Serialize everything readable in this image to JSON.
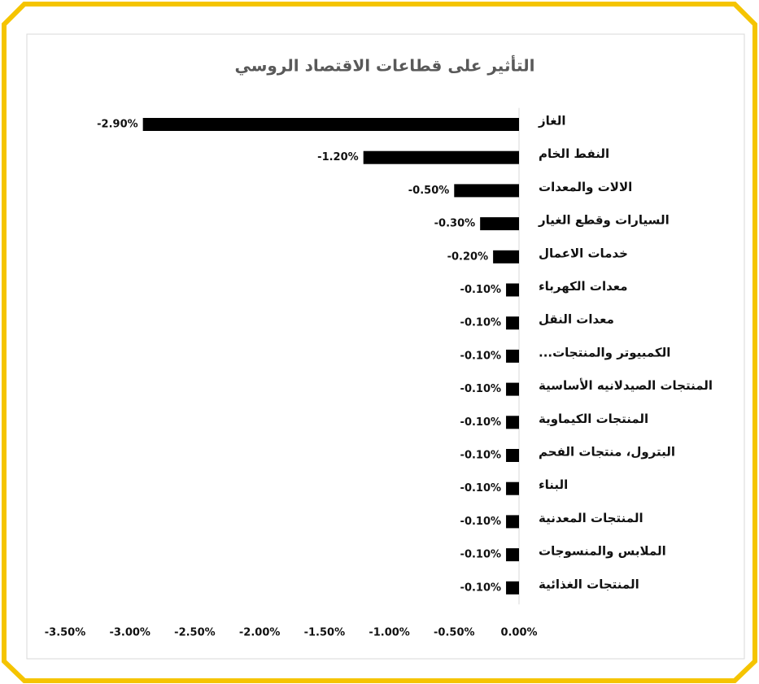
{
  "chart_data": {
    "type": "barh",
    "title": "التأثير على قطاعات الاقتصاد الروسي",
    "categories": [
      "الغاز",
      "النفط الخام",
      "الالات والمعدات",
      "السيارات وقطع الغيار",
      "خدمات الاعمال",
      "معدات الكهرباء",
      "معدات النقل",
      "الكمبيوتر والمنتجات...",
      "المنتجات الصيدلانيه الأساسية",
      "المنتجات الكيماوية",
      "البترول، منتجات الفحم",
      "البناء",
      "المنتجات المعدنية",
      "الملابس والمنسوجات",
      "المنتجات الغذائية"
    ],
    "values": [
      -2.9,
      -1.2,
      -0.5,
      -0.3,
      -0.2,
      -0.1,
      -0.1,
      -0.1,
      -0.1,
      -0.1,
      -0.1,
      -0.1,
      -0.1,
      -0.1,
      -0.1
    ],
    "value_labels": [
      "-2.90%",
      "-1.20%",
      "-0.50%",
      "-0.30%",
      "-0.20%",
      "-0.10%",
      "-0.10%",
      "-0.10%",
      "-0.10%",
      "-0.10%",
      "-0.10%",
      "-0.10%",
      "-0.10%",
      "-0.10%",
      "-0.10%"
    ],
    "color": "#000000",
    "xlim": [
      -3.5,
      0
    ],
    "xticks": [
      {
        "value": -3.5,
        "label": "-3.50%"
      },
      {
        "value": -3,
        "label": "-3.00%"
      },
      {
        "value": -2.5,
        "label": "-2.50%"
      },
      {
        "value": -2,
        "label": "-2.00%"
      },
      {
        "value": -1.5,
        "label": "-1.50%"
      },
      {
        "value": -1,
        "label": "-1.00%"
      },
      {
        "value": -0.5,
        "label": "-0.50%"
      },
      {
        "value": 0,
        "label": "0.00%"
      }
    ],
    "grid": false
  }
}
